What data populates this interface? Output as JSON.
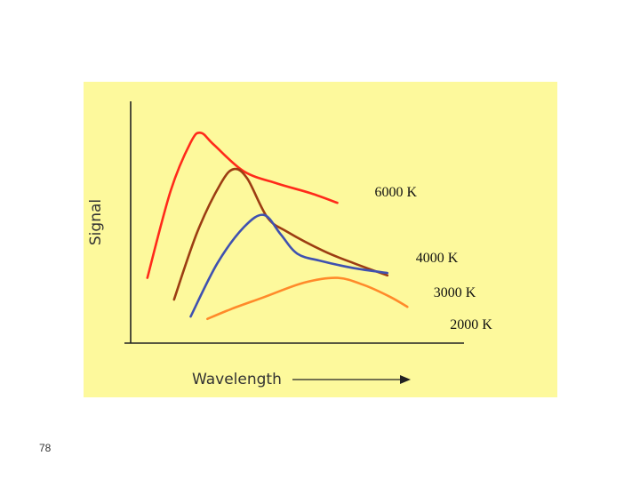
{
  "page": {
    "number": "78"
  },
  "colors": {
    "background": "#fdf99c",
    "axis": "#222222",
    "series_6000": "#ff2a1a",
    "series_4000": "#9c3d12",
    "series_3000": "#3f51b0",
    "series_2000": "#ff8a2a"
  },
  "chart_data": {
    "type": "line",
    "title": "",
    "xlabel": "Wavelength",
    "ylabel": "Signal",
    "grid": false,
    "legend": "series labels at right end of each curve",
    "xlim": [
      0,
      100
    ],
    "ylim": [
      0,
      100
    ],
    "series": [
      {
        "name": "6000 K",
        "color": "#ff2a1a",
        "points": [
          [
            5,
            27
          ],
          [
            12,
            63
          ],
          [
            18,
            83
          ],
          [
            21,
            87
          ],
          [
            25,
            82
          ],
          [
            34,
            71
          ],
          [
            44,
            66
          ],
          [
            54,
            62
          ],
          [
            62,
            58
          ]
        ]
      },
      {
        "name": "4000 K",
        "color": "#9c3d12",
        "points": [
          [
            13,
            18
          ],
          [
            20,
            46
          ],
          [
            27,
            66
          ],
          [
            31,
            72
          ],
          [
            35,
            68
          ],
          [
            41,
            52
          ],
          [
            47,
            46
          ],
          [
            58,
            38
          ],
          [
            67,
            33
          ],
          [
            77,
            28
          ]
        ]
      },
      {
        "name": "3000 K",
        "color": "#3f51b0",
        "points": [
          [
            18,
            11
          ],
          [
            26,
            33
          ],
          [
            34,
            48
          ],
          [
            40,
            53
          ],
          [
            45,
            45
          ],
          [
            50,
            37
          ],
          [
            57,
            34
          ],
          [
            67,
            31
          ],
          [
            77,
            29
          ]
        ]
      },
      {
        "name": "2000 K",
        "color": "#ff8a2a",
        "points": [
          [
            23,
            10
          ],
          [
            30,
            14
          ],
          [
            40,
            19
          ],
          [
            52,
            25
          ],
          [
            62,
            27
          ],
          [
            70,
            24
          ],
          [
            78,
            19
          ],
          [
            83,
            15
          ]
        ]
      }
    ]
  }
}
